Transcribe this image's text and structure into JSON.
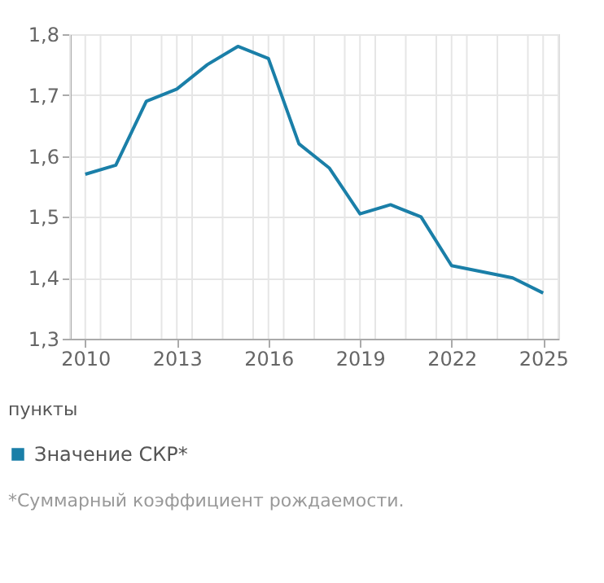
{
  "chart_data": {
    "type": "line",
    "legend_title": "пункты",
    "annotations": [
      "*Суммарный коэффициент рождаемости."
    ],
    "x": [
      2010,
      2011,
      2012,
      2013,
      2014,
      2015,
      2016,
      2017,
      2018,
      2019,
      2020,
      2021,
      2022,
      2023,
      2024,
      2025
    ],
    "series": [
      {
        "name": "Значение СКР*",
        "color": "#1a7fa8",
        "values": [
          1.57,
          1.585,
          1.69,
          1.71,
          1.75,
          1.78,
          1.76,
          1.62,
          1.58,
          1.505,
          1.52,
          1.5,
          1.42,
          1.41,
          1.4,
          1.375
        ]
      }
    ],
    "xlim": [
      2009.5,
      2025.5
    ],
    "xticks": [
      {
        "value": 2009.5,
        "label": null
      },
      {
        "value": 2010,
        "label": "2010"
      },
      {
        "value": 2010.5,
        "label": null
      },
      {
        "value": 2011.5,
        "label": null
      },
      {
        "value": 2012.5,
        "label": null
      },
      {
        "value": 2013,
        "label": "2013"
      },
      {
        "value": 2013.5,
        "label": null
      },
      {
        "value": 2014.5,
        "label": null
      },
      {
        "value": 2015.5,
        "label": null
      },
      {
        "value": 2016,
        "label": "2016"
      },
      {
        "value": 2016.5,
        "label": null
      },
      {
        "value": 2017.5,
        "label": null
      },
      {
        "value": 2018.5,
        "label": null
      },
      {
        "value": 2019,
        "label": "2019"
      },
      {
        "value": 2019.5,
        "label": null
      },
      {
        "value": 2020.5,
        "label": null
      },
      {
        "value": 2021.5,
        "label": null
      },
      {
        "value": 2022,
        "label": "2022"
      },
      {
        "value": 2022.5,
        "label": null
      },
      {
        "value": 2023.5,
        "label": null
      },
      {
        "value": 2024.5,
        "label": null
      },
      {
        "value": 2025,
        "label": "2025"
      },
      {
        "value": 2025.5,
        "label": null
      }
    ],
    "ylim": [
      1.3,
      1.8
    ],
    "yticks": [
      {
        "value": 1.3,
        "label": "1,3"
      },
      {
        "value": 1.4,
        "label": "1,4"
      },
      {
        "value": 1.5,
        "label": "1,5"
      },
      {
        "value": 1.6,
        "label": "1,6"
      },
      {
        "value": 1.7,
        "label": "1,7"
      },
      {
        "value": 1.8,
        "label": "1,8"
      }
    ],
    "grid": true,
    "legend": "bottom left",
    "marker": "none",
    "line_style": "solid"
  }
}
